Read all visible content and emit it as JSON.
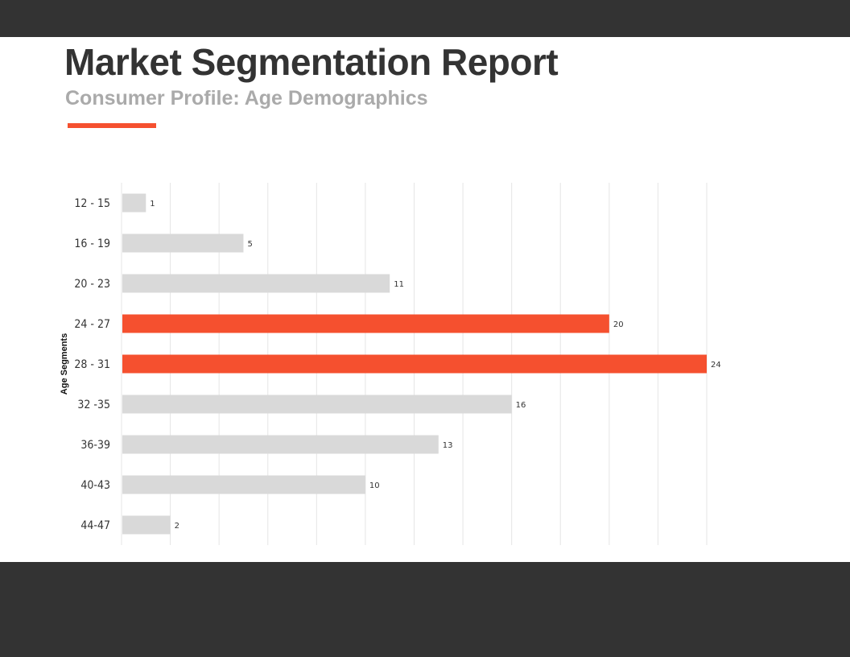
{
  "report": {
    "title": "Market Segmentation Report",
    "subtitle": "Consumer Profile: Age Demographics"
  },
  "colors": {
    "dark_band": "#333333",
    "accent": "#f5502f",
    "bar_default": "#d9d9d9",
    "grid": "#e5e5e5"
  },
  "chart_data": {
    "type": "bar",
    "orientation": "horizontal",
    "ylabel": "Age Segments",
    "xlabel": "",
    "categories": [
      "12 - 15",
      "16 - 19",
      "20 - 23",
      "24 - 27",
      "28 - 31",
      "32 -35",
      "36-39",
      "40-43",
      "44-47"
    ],
    "values": [
      1,
      5,
      11,
      20,
      24,
      16,
      13,
      10,
      2
    ],
    "highlighted": [
      "24 - 27",
      "28 - 31"
    ],
    "xlim": [
      0,
      24
    ],
    "x_gridline_step": 2,
    "grid": true,
    "data_labels": true,
    "legend": "none"
  }
}
